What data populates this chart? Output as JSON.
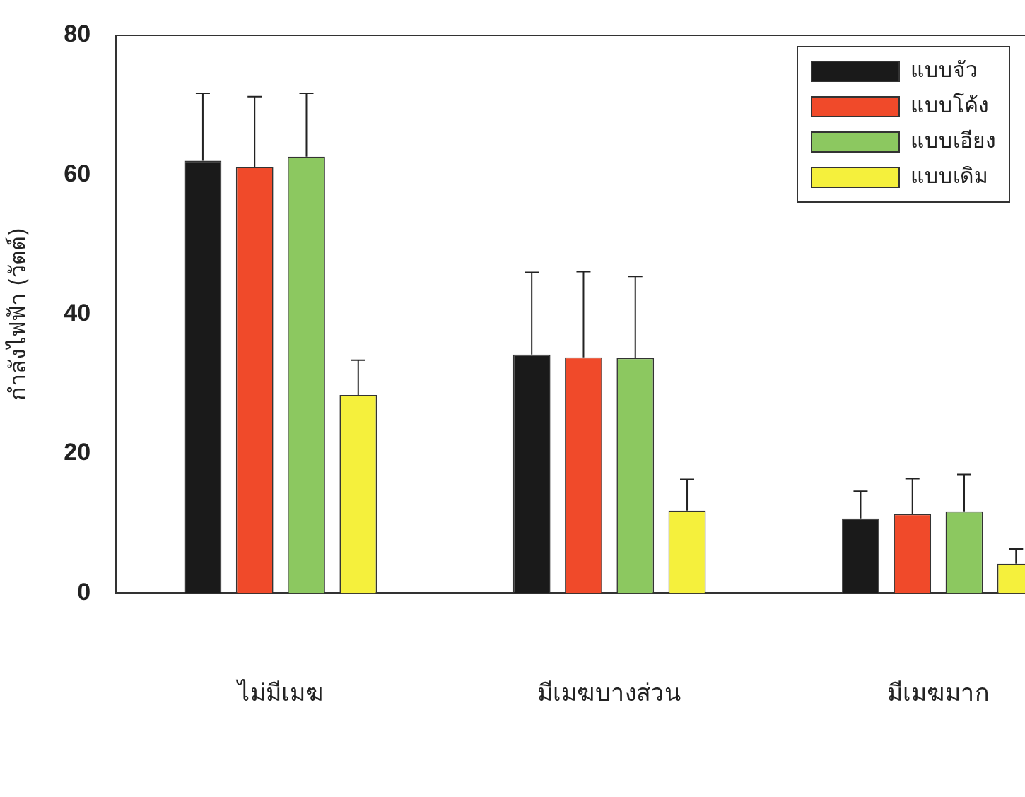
{
  "chart_data": {
    "type": "bar",
    "ylabel": "กำลังไฟฟ้า (วัตต์)",
    "categories": [
      "ไม่มีเมฆ",
      "มีเมฆบางส่วน",
      "มีเมฆมาก"
    ],
    "series": [
      {
        "name": "แบบจัว",
        "color": "#1a1a1a",
        "values": [
          62.0,
          34.2,
          10.7
        ],
        "errors": [
          [
            62.0,
            71.7
          ],
          [
            34.2,
            46.0
          ],
          [
            10.7,
            14.6
          ]
        ]
      },
      {
        "name": "แบบโค้ง",
        "color": "#f04a2a",
        "values": [
          61.1,
          33.8,
          11.3
        ],
        "errors": [
          [
            61.1,
            71.2
          ],
          [
            33.8,
            46.1
          ],
          [
            11.3,
            16.4
          ]
        ]
      },
      {
        "name": "แบบเอียง",
        "color": "#8cc860",
        "values": [
          62.6,
          33.7,
          11.7
        ],
        "errors": [
          [
            62.6,
            71.7
          ],
          [
            33.7,
            45.4
          ],
          [
            11.7,
            17.0
          ]
        ]
      },
      {
        "name": "แบบเดิม",
        "color": "#f5f03c",
        "values": [
          28.4,
          11.8,
          4.2
        ],
        "errors": [
          [
            28.4,
            33.4
          ],
          [
            11.8,
            16.3
          ],
          [
            4.2,
            6.3
          ]
        ]
      }
    ],
    "ylim": [
      0,
      80
    ],
    "yticks": [
      0,
      20,
      40,
      60,
      80
    ],
    "grid": false,
    "legend": "top right"
  }
}
